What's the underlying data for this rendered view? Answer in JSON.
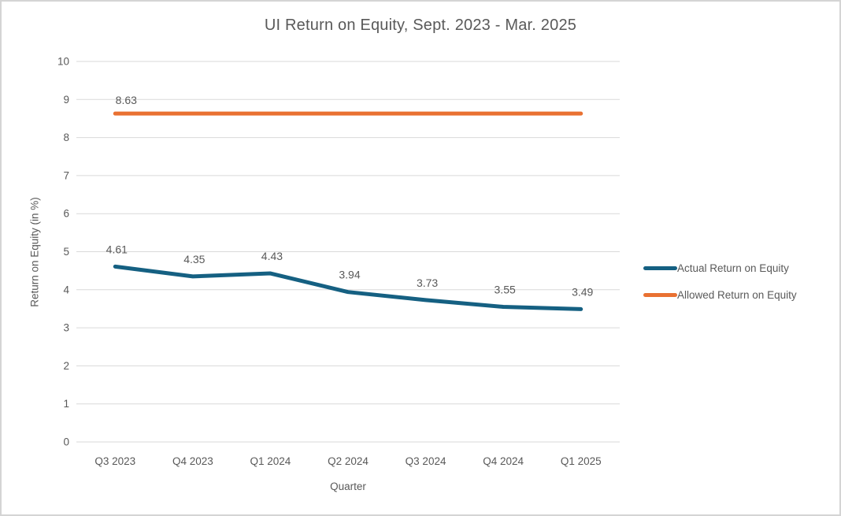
{
  "chart_data": {
    "type": "line",
    "title": "UI Return on Equity, Sept. 2023 - Mar. 2025",
    "xlabel": "Quarter",
    "ylabel": "Return on Equity (in %)",
    "ylim": [
      0,
      10
    ],
    "ytick_step": 1,
    "grid": true,
    "legend_position": "right",
    "gridline_color": "#D9D9D9",
    "text_color": "#595959",
    "categories": [
      "Q3 2023",
      "Q4 2023",
      "Q1 2024",
      "Q2 2024",
      "Q3 2024",
      "Q4 2024",
      "Q1 2025"
    ],
    "series": [
      {
        "id": "actual",
        "name": "Actual Return on Equity",
        "color": "#156082",
        "values": [
          4.61,
          4.35,
          4.43,
          3.94,
          3.73,
          3.55,
          3.49
        ],
        "data_labels": "all"
      },
      {
        "id": "allowed",
        "name": "Allowed Return on Equity",
        "color": "#E97132",
        "values": [
          8.63,
          8.63,
          8.63,
          8.63,
          8.63,
          8.63,
          8.63
        ],
        "data_labels": "first"
      }
    ]
  }
}
